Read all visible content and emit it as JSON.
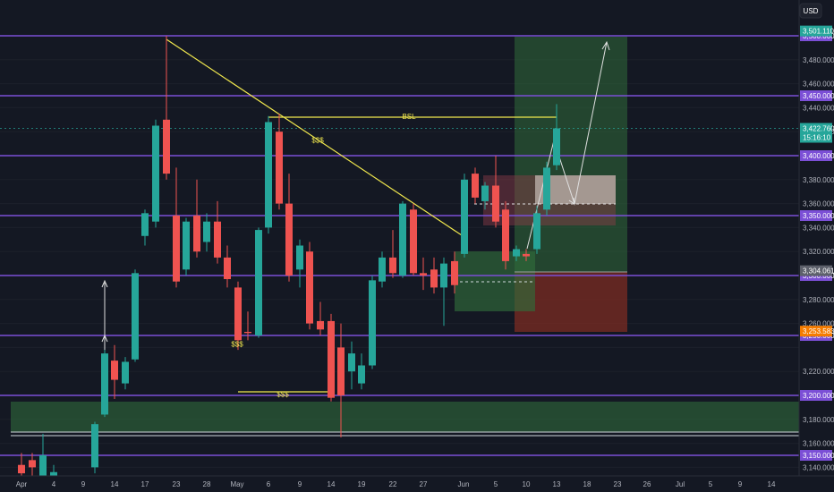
{
  "currency": "USD",
  "colors": {
    "background": "#141823",
    "up": "#26a69a",
    "down": "#ef5350",
    "level": "#7b4fd6",
    "trend": "#f2e94e",
    "zone": "#2f6b3a",
    "stop_zone": "#8b2e22"
  },
  "chart_data": {
    "type": "candlestick",
    "title": "",
    "xlabel": "",
    "ylabel": "",
    "ylim": [
      3133,
      3522
    ],
    "x_ticks": [
      "Apr",
      "4",
      "9",
      "14",
      "17",
      "23",
      "28",
      "May",
      "6",
      "9",
      "14",
      "19",
      "22",
      "27",
      "Jun",
      "5",
      "10",
      "13",
      "18",
      "23",
      "26",
      "Jul",
      "5",
      "9",
      "14"
    ],
    "y_ticks": [
      "3,480.000",
      "3,460.000",
      "3,440.000",
      "3,420.000",
      "3,380.000",
      "3,360.000",
      "3,340.000",
      "3,320.000",
      "3,280.000",
      "3,260.000",
      "3,220.000",
      "3,180.000",
      "3,160.000",
      "3,140.000"
    ],
    "levels": [
      {
        "label": "3,500.000",
        "value": 3500
      },
      {
        "label": "3,450.000",
        "value": 3450
      },
      {
        "label": "3,400.000",
        "value": 3400
      },
      {
        "label": "3,350.000",
        "value": 3350
      },
      {
        "label": "3,300.000",
        "value": 3300
      },
      {
        "label": "3,250.000",
        "value": 3250
      },
      {
        "label": "3,200.000",
        "value": 3200
      },
      {
        "label": "3,150.000",
        "value": 3150
      }
    ],
    "price_tags": [
      {
        "label": "3,501.110",
        "value": 3504,
        "color": "#26a69a"
      },
      {
        "label": "3,422.760",
        "sub": "15:16:10",
        "value": 3422.76,
        "color": "#26a69a"
      },
      {
        "label": "3,304.061",
        "value": 3304,
        "color": "#5d606b"
      },
      {
        "label": "3,253.583",
        "value": 3253.6,
        "color": "#f57c00"
      }
    ],
    "annotations": [
      {
        "text": "BSL",
        "x": 457,
        "value": 3433
      },
      {
        "text": "$$$",
        "x": 355,
        "value": 3413
      },
      {
        "text": "$$$",
        "x": 316,
        "value": 3201
      },
      {
        "text": "$$$",
        "x": 265,
        "value": 3243
      }
    ],
    "candles": [
      {
        "x": 24,
        "o": 3142,
        "h": 3152,
        "l": 3125,
        "c": 3135
      },
      {
        "x": 36,
        "o": 3146,
        "h": 3152,
        "l": 3133,
        "c": 3140
      },
      {
        "x": 48,
        "o": 3133,
        "h": 3168,
        "l": 3125,
        "c": 3150
      },
      {
        "x": 60,
        "o": 3128,
        "h": 3142,
        "l": 3120,
        "c": 3136
      },
      {
        "x": 106,
        "o": 3140,
        "h": 3178,
        "l": 3135,
        "c": 3176
      },
      {
        "x": 117,
        "o": 3184,
        "h": 3238,
        "l": 3182,
        "c": 3235
      },
      {
        "x": 128,
        "o": 3229,
        "h": 3242,
        "l": 3197,
        "c": 3213
      },
      {
        "x": 140,
        "o": 3210,
        "h": 3232,
        "l": 3205,
        "c": 3228
      },
      {
        "x": 151,
        "o": 3230,
        "h": 3305,
        "l": 3228,
        "c": 3302
      },
      {
        "x": 162,
        "o": 3333,
        "h": 3355,
        "l": 3325,
        "c": 3352
      },
      {
        "x": 174,
        "o": 3345,
        "h": 3430,
        "l": 3340,
        "c": 3425
      },
      {
        "x": 186,
        "o": 3430,
        "h": 3500,
        "l": 3380,
        "c": 3385
      },
      {
        "x": 197,
        "o": 3350,
        "h": 3390,
        "l": 3290,
        "c": 3295
      },
      {
        "x": 208,
        "o": 3305,
        "h": 3348,
        "l": 3300,
        "c": 3345
      },
      {
        "x": 220,
        "o": 3350,
        "h": 3380,
        "l": 3315,
        "c": 3320
      },
      {
        "x": 231,
        "o": 3328,
        "h": 3352,
        "l": 3320,
        "c": 3345
      },
      {
        "x": 243,
        "o": 3345,
        "h": 3362,
        "l": 3310,
        "c": 3315
      },
      {
        "x": 254,
        "o": 3315,
        "h": 3325,
        "l": 3290,
        "c": 3297
      },
      {
        "x": 266,
        "o": 3290,
        "h": 3295,
        "l": 3238,
        "c": 3246
      },
      {
        "x": 277,
        "o": 3253,
        "h": 3270,
        "l": 3246,
        "c": 3252
      },
      {
        "x": 289,
        "o": 3250,
        "h": 3340,
        "l": 3248,
        "c": 3338
      },
      {
        "x": 300,
        "o": 3340,
        "h": 3433,
        "l": 3335,
        "c": 3428
      },
      {
        "x": 312,
        "o": 3420,
        "h": 3435,
        "l": 3355,
        "c": 3360
      },
      {
        "x": 323,
        "o": 3360,
        "h": 3385,
        "l": 3295,
        "c": 3300
      },
      {
        "x": 335,
        "o": 3305,
        "h": 3330,
        "l": 3290,
        "c": 3325
      },
      {
        "x": 346,
        "o": 3320,
        "h": 3328,
        "l": 3255,
        "c": 3260
      },
      {
        "x": 358,
        "o": 3262,
        "h": 3278,
        "l": 3250,
        "c": 3255
      },
      {
        "x": 370,
        "o": 3262,
        "h": 3268,
        "l": 3195,
        "c": 3198
      },
      {
        "x": 381,
        "o": 3240,
        "h": 3260,
        "l": 3165,
        "c": 3200
      },
      {
        "x": 393,
        "o": 3220,
        "h": 3245,
        "l": 3205,
        "c": 3235
      },
      {
        "x": 404,
        "o": 3210,
        "h": 3235,
        "l": 3205,
        "c": 3225
      },
      {
        "x": 416,
        "o": 3225,
        "h": 3300,
        "l": 3222,
        "c": 3296
      },
      {
        "x": 427,
        "o": 3295,
        "h": 3320,
        "l": 3290,
        "c": 3315
      },
      {
        "x": 439,
        "o": 3315,
        "h": 3338,
        "l": 3298,
        "c": 3302
      },
      {
        "x": 450,
        "o": 3300,
        "h": 3362,
        "l": 3298,
        "c": 3360
      },
      {
        "x": 462,
        "o": 3355,
        "h": 3360,
        "l": 3300,
        "c": 3302
      },
      {
        "x": 473,
        "o": 3302,
        "h": 3315,
        "l": 3288,
        "c": 3300
      },
      {
        "x": 485,
        "o": 3305,
        "h": 3315,
        "l": 3285,
        "c": 3290
      },
      {
        "x": 496,
        "o": 3290,
        "h": 3315,
        "l": 3258,
        "c": 3310
      },
      {
        "x": 508,
        "o": 3312,
        "h": 3320,
        "l": 3285,
        "c": 3292
      },
      {
        "x": 519,
        "o": 3318,
        "h": 3385,
        "l": 3315,
        "c": 3380
      },
      {
        "x": 531,
        "o": 3385,
        "h": 3390,
        "l": 3360,
        "c": 3365
      },
      {
        "x": 542,
        "o": 3362,
        "h": 3378,
        "l": 3355,
        "c": 3375
      },
      {
        "x": 554,
        "o": 3375,
        "h": 3400,
        "l": 3340,
        "c": 3345
      },
      {
        "x": 565,
        "o": 3355,
        "h": 3362,
        "l": 3305,
        "c": 3312
      },
      {
        "x": 577,
        "o": 3316,
        "h": 3325,
        "l": 3312,
        "c": 3322
      },
      {
        "x": 588,
        "o": 3318,
        "h": 3322,
        "l": 3312,
        "c": 3316
      },
      {
        "x": 600,
        "o": 3322,
        "h": 3358,
        "l": 3318,
        "c": 3352
      },
      {
        "x": 611,
        "o": 3355,
        "h": 3395,
        "l": 3350,
        "c": 3390
      },
      {
        "x": 622,
        "o": 3392,
        "h": 3443,
        "l": 3388,
        "c": 3422.76
      }
    ]
  }
}
